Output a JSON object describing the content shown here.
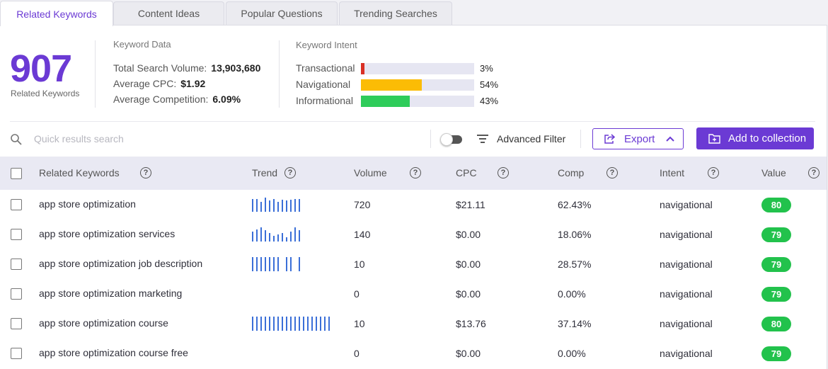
{
  "tabs": [
    "Related Keywords",
    "Content Ideas",
    "Popular Questions",
    "Trending Searches"
  ],
  "summary": {
    "count": "907",
    "count_label": "Related Keywords"
  },
  "keyword_data": {
    "title": "Keyword Data",
    "rows": [
      {
        "label": "Total Search Volume:",
        "value": "13,903,680"
      },
      {
        "label": "Average CPC:",
        "value": "$1.92"
      },
      {
        "label": "Average Competition:",
        "value": "6.09%"
      }
    ]
  },
  "keyword_intent": {
    "title": "Keyword Intent",
    "rows": [
      {
        "label": "Transactional",
        "pct": "3%",
        "value": 3,
        "color": "#d93025"
      },
      {
        "label": "Navigational",
        "pct": "54%",
        "value": 54,
        "color": "#fbbc05"
      },
      {
        "label": "Informational",
        "pct": "43%",
        "value": 43,
        "color": "#2ecc5a"
      }
    ]
  },
  "toolbar": {
    "search_placeholder": "Quick results search",
    "advanced_filter": "Advanced Filter",
    "export": "Export",
    "add_to_collection": "Add to collection"
  },
  "table": {
    "columns": [
      "Related Keywords",
      "Trend",
      "Volume",
      "CPC",
      "Comp",
      "Intent",
      "Value"
    ],
    "rows": [
      {
        "keyword": "app store optimization",
        "volume": "720",
        "cpc": "$21.11",
        "comp": "62.43%",
        "intent": "navigational",
        "value": "80",
        "trend": [
          18,
          18,
          14,
          20,
          16,
          18,
          14,
          17,
          16,
          17,
          18,
          18
        ]
      },
      {
        "keyword": "app store optimization services",
        "volume": "140",
        "cpc": "$0.00",
        "comp": "18.06%",
        "intent": "navigational",
        "value": "79",
        "trend": [
          14,
          17,
          20,
          16,
          12,
          8,
          10,
          12,
          6,
          14,
          20,
          16
        ]
      },
      {
        "keyword": "app store optimization job description",
        "volume": "10",
        "cpc": "$0.00",
        "comp": "28.57%",
        "intent": "navigational",
        "value": "79",
        "trend": [
          20,
          20,
          20,
          20,
          20,
          20,
          20,
          0,
          20,
          20,
          0,
          20
        ]
      },
      {
        "keyword": "app store optimization marketing",
        "volume": "0",
        "cpc": "$0.00",
        "comp": "0.00%",
        "intent": "navigational",
        "value": "79",
        "trend": []
      },
      {
        "keyword": "app store optimization course",
        "volume": "10",
        "cpc": "$13.76",
        "comp": "37.14%",
        "intent": "navigational",
        "value": "80",
        "trend": [
          20,
          20,
          20,
          20,
          20,
          20,
          20,
          20,
          20,
          20,
          20,
          20,
          20,
          20,
          20,
          20,
          20,
          20,
          20
        ]
      },
      {
        "keyword": "app store optimization course free",
        "volume": "0",
        "cpc": "$0.00",
        "comp": "0.00%",
        "intent": "navigational",
        "value": "79",
        "trend": []
      }
    ]
  },
  "icons": [
    "search-icon",
    "filter-lines-icon",
    "export-icon",
    "chevron-up-icon",
    "folder-plus-icon",
    "question-icon"
  ]
}
